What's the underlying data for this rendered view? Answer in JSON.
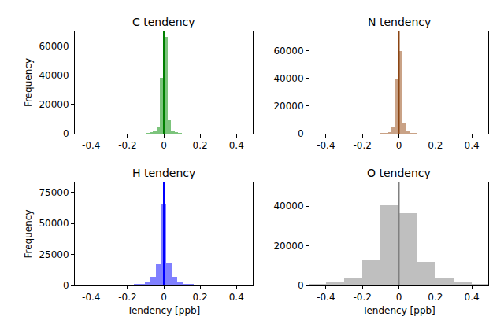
{
  "chart_data": [
    {
      "type": "histogram",
      "title": "C tendency",
      "ylabel": "Frequency",
      "bins": [
        -0.1,
        -0.08,
        -0.06,
        -0.04,
        -0.02,
        0,
        0.02,
        0.04,
        0.06,
        0.08,
        0.1
      ],
      "counts": [
        300,
        700,
        1500,
        5000,
        38000,
        66000,
        9000,
        2000,
        800,
        300
      ],
      "color": "#7cc47c",
      "line_color": "#008000",
      "vline": 0,
      "xlim": [
        -0.49,
        0.49
      ],
      "xticks": [
        -0.4,
        -0.2,
        0,
        0.2,
        0.4
      ],
      "ylim": [
        0,
        70000
      ],
      "yticks": [
        0,
        20000,
        40000,
        60000
      ]
    },
    {
      "type": "histogram",
      "title": "N tendency",
      "bins": [
        -0.1,
        -0.08,
        -0.06,
        -0.04,
        -0.02,
        0,
        0.02,
        0.04,
        0.06,
        0.08,
        0.1
      ],
      "counts": [
        200,
        500,
        1200,
        5000,
        39000,
        60000,
        8000,
        1500,
        500,
        200
      ],
      "color": "#c9a286",
      "line_color": "#8b4513",
      "vline": 0,
      "xlim": [
        -0.49,
        0.49
      ],
      "xticks": [
        -0.4,
        -0.2,
        0,
        0.2,
        0.4
      ],
      "ylim": [
        0,
        74000
      ],
      "yticks": [
        0,
        20000,
        40000,
        60000
      ]
    },
    {
      "type": "histogram",
      "title": "H tendency",
      "xlabel": "Tendency [ppb]",
      "ylabel": "Frequency",
      "bins": [
        -0.195,
        -0.165,
        -0.135,
        -0.105,
        -0.075,
        -0.045,
        -0.015,
        0.015,
        0.045,
        0.075,
        0.105,
        0.135,
        0.165,
        0.195
      ],
      "counts": [
        300,
        800,
        1500,
        3000,
        7000,
        17000,
        65000,
        18000,
        7000,
        3000,
        1500,
        800,
        300
      ],
      "color": "#8080ff",
      "line_color": "#0000ff",
      "vline": 0,
      "xlim": [
        -0.49,
        0.49
      ],
      "xticks": [
        -0.4,
        -0.2,
        0,
        0.2,
        0.4
      ],
      "ylim": [
        0,
        83000
      ],
      "yticks": [
        0,
        25000,
        50000,
        75000
      ]
    },
    {
      "type": "histogram",
      "title": "O tendency",
      "xlabel": "Tendency [ppb]",
      "bins": [
        -0.5,
        -0.4,
        -0.3,
        -0.2,
        -0.1,
        0,
        0.1,
        0.2,
        0.3,
        0.4,
        0.5
      ],
      "counts": [
        500,
        1500,
        4000,
        13000,
        40500,
        36500,
        12000,
        4000,
        1500,
        500
      ],
      "color": "#bfbfbf",
      "line_color": "#808080",
      "vline": 0,
      "xlim": [
        -0.49,
        0.49
      ],
      "xticks": [
        -0.4,
        -0.2,
        0,
        0.2,
        0.4
      ],
      "ylim": [
        0,
        52000
      ],
      "yticks": [
        0,
        20000,
        40000
      ]
    }
  ]
}
